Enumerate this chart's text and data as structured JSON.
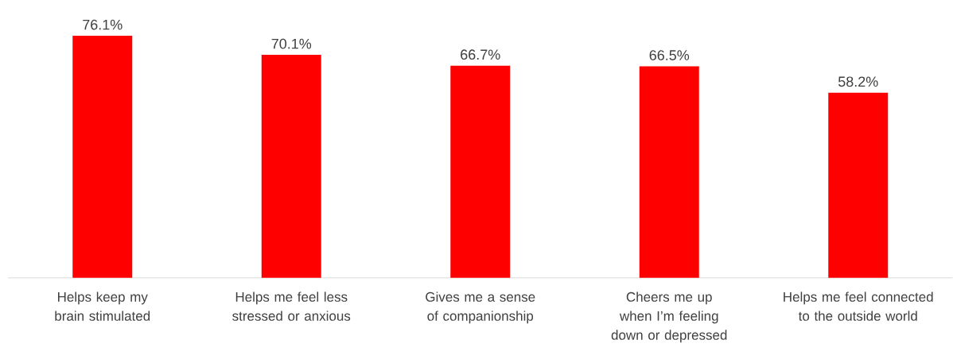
{
  "chart_data": {
    "type": "bar",
    "categories": [
      "Helps keep my brain stimulated",
      "Helps me feel less stressed or anxious",
      "Gives me a sense of companionship",
      "Cheers me up when I’m feeling down or depressed",
      "Helps me feel connected to the outside world"
    ],
    "values": [
      76.1,
      70.1,
      66.7,
      66.5,
      58.2
    ],
    "value_labels": [
      "76.1%",
      "70.1%",
      "66.7%",
      "66.5%",
      "58.2%"
    ],
    "color": "#ff0000",
    "tick_labels": "x"
  }
}
